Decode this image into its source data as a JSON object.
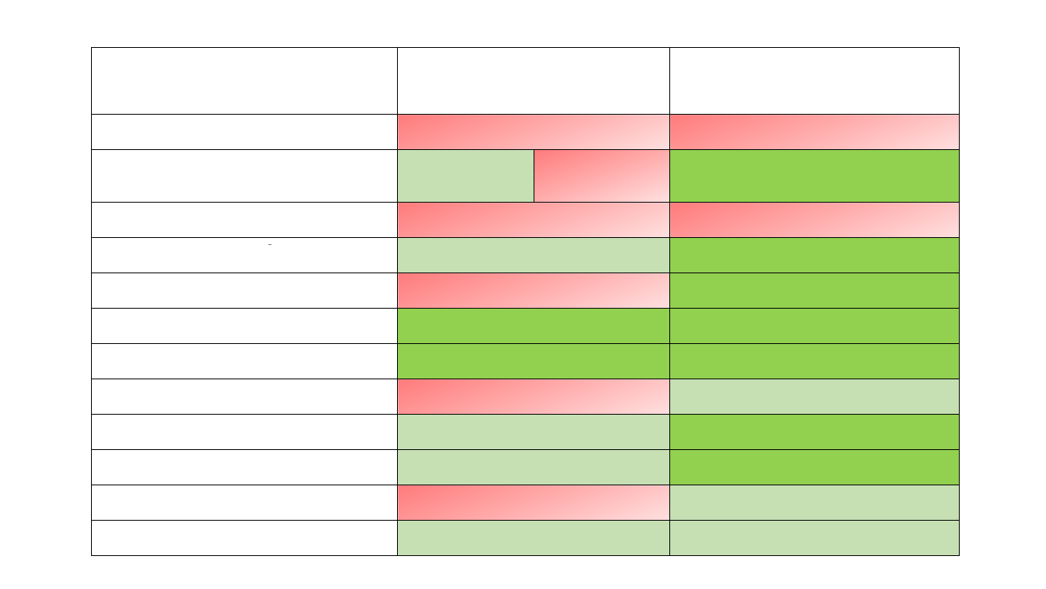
{
  "table": {
    "header": [
      "",
      "",
      ""
    ],
    "rows": [
      {
        "label": "",
        "cells": [
          "red",
          "red"
        ]
      },
      {
        "label": "",
        "cells": [
          [
            "light-green",
            "red"
          ],
          "green"
        ]
      },
      {
        "label": "",
        "cells": [
          "red",
          "red"
        ]
      },
      {
        "label": "",
        "cells": [
          "light-green",
          "green"
        ]
      },
      {
        "label": "",
        "cells": [
          "red",
          "green"
        ]
      },
      {
        "label": "",
        "cells": [
          "green",
          "green"
        ]
      },
      {
        "label": "",
        "cells": [
          "green",
          "green"
        ]
      },
      {
        "label": "",
        "cells": [
          "red",
          "light-green"
        ]
      },
      {
        "label": "",
        "cells": [
          "light-green",
          "green"
        ]
      },
      {
        "label": "",
        "cells": [
          "light-green",
          "green"
        ]
      },
      {
        "label": "",
        "cells": [
          "red",
          "light-green"
        ]
      },
      {
        "label": "",
        "cells": [
          "light-green",
          "light-green"
        ]
      }
    ]
  },
  "colors": {
    "red": "#ff7b7b",
    "light_green": "#c6e0b4",
    "green": "#92d050",
    "border": "#000000"
  }
}
